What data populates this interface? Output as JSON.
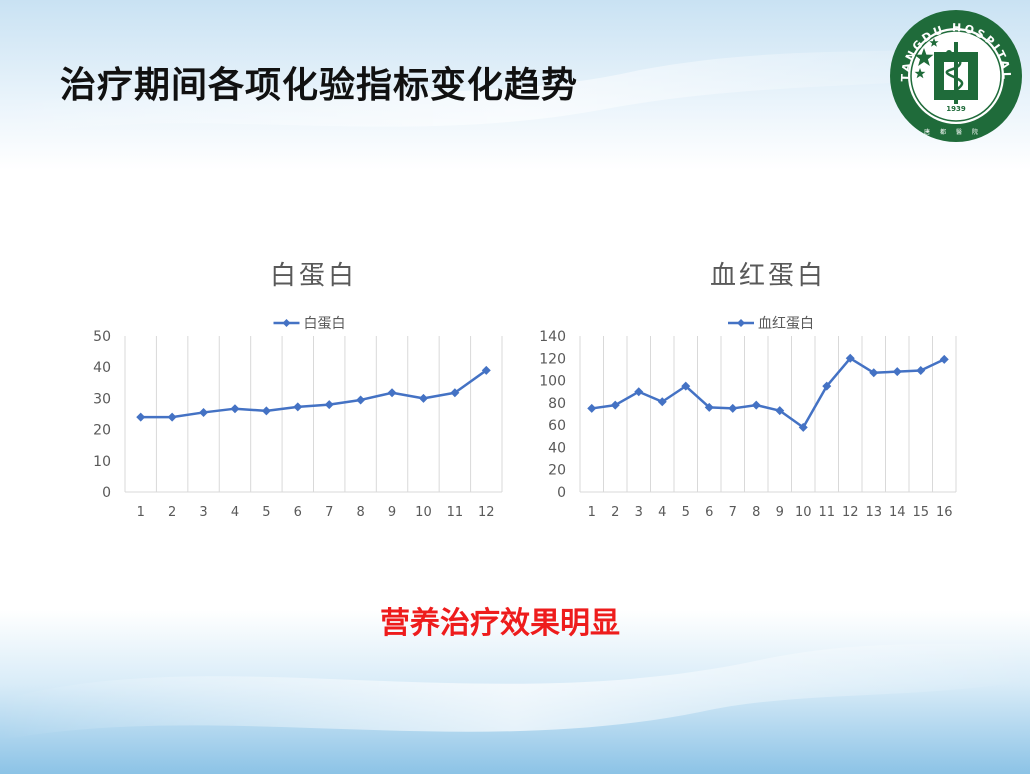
{
  "slide": {
    "title": "治疗期间各项化验指标变化趋势",
    "conclusion": "营养治疗效果明显"
  },
  "logo": {
    "ring_text": "TANGDU HOSPITAL",
    "bottom_text": "唐都醫院",
    "year": "1939",
    "color": "#1f6b3a"
  },
  "colors": {
    "series": "#4472c4",
    "title": "#595959",
    "axis_text": "#595959",
    "grid": "#d9d9d9",
    "conclusion": "#ee1c1c"
  },
  "chart_data": [
    {
      "type": "line",
      "title": "白蛋白",
      "x": [
        1,
        2,
        3,
        4,
        5,
        6,
        7,
        8,
        9,
        10,
        11,
        12
      ],
      "series": [
        {
          "name": "白蛋白",
          "values": [
            24,
            24,
            25.5,
            26.7,
            26,
            27.3,
            28,
            29.5,
            31.8,
            30,
            31.8,
            39
          ]
        }
      ],
      "ylim": [
        0,
        50
      ],
      "yticks": [
        0,
        10,
        20,
        30,
        40,
        50
      ],
      "grid": "vertical",
      "legend": "top-center",
      "xlabel": "",
      "ylabel": ""
    },
    {
      "type": "line",
      "title": "血红蛋白",
      "x": [
        1,
        2,
        3,
        4,
        5,
        6,
        7,
        8,
        9,
        10,
        11,
        12,
        13,
        14,
        15,
        16
      ],
      "series": [
        {
          "name": "血红蛋白",
          "values": [
            75,
            78,
            90,
            81,
            95,
            76,
            75,
            78,
            73,
            58,
            95,
            120,
            107,
            108,
            109,
            119
          ]
        }
      ],
      "ylim": [
        0,
        140
      ],
      "yticks": [
        0,
        20,
        40,
        60,
        80,
        100,
        120,
        140
      ],
      "grid": "vertical",
      "legend": "top-center",
      "xlabel": "",
      "ylabel": ""
    }
  ]
}
